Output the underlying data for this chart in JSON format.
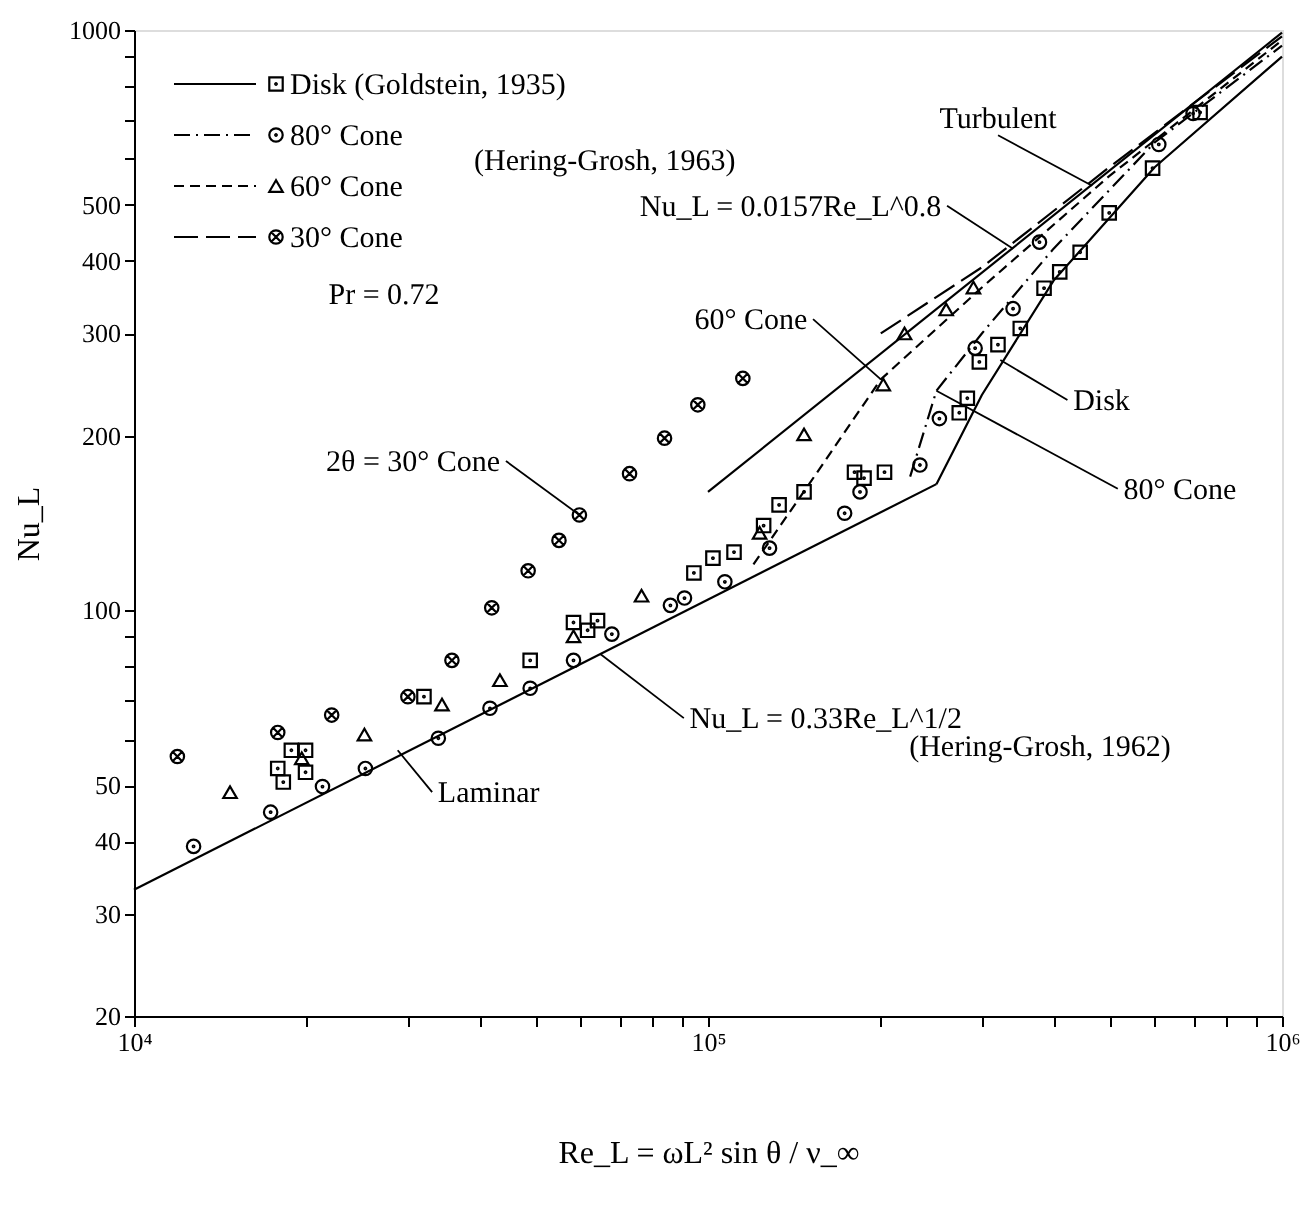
{
  "chart_data": {
    "type": "scatter",
    "xlabel": "Re_L = ωL² sin θ / ν_∞",
    "ylabel": "Nu_L",
    "log": "xy",
    "xlim": [
      10000,
      1000000
    ],
    "ylim": [
      20,
      1000
    ],
    "xticks": [
      {
        "value": 10000,
        "label": "10⁴"
      },
      {
        "value": 20000,
        "label": null
      },
      {
        "value": 30000,
        "label": null
      },
      {
        "value": 40000,
        "label": null
      },
      {
        "value": 50000,
        "label": null
      },
      {
        "value": 60000,
        "label": null
      },
      {
        "value": 70000,
        "label": null
      },
      {
        "value": 80000,
        "label": null
      },
      {
        "value": 90000,
        "label": null
      },
      {
        "value": 100000,
        "label": "10⁵"
      },
      {
        "value": 200000,
        "label": null
      },
      {
        "value": 300000,
        "label": null
      },
      {
        "value": 400000,
        "label": null
      },
      {
        "value": 500000,
        "label": null
      },
      {
        "value": 600000,
        "label": null
      },
      {
        "value": 700000,
        "label": null
      },
      {
        "value": 800000,
        "label": null
      },
      {
        "value": 900000,
        "label": null
      },
      {
        "value": 1000000,
        "label": "10⁶"
      }
    ],
    "yticks": [
      20,
      30,
      40,
      50,
      {
        "value": 60,
        "label": null
      },
      {
        "value": 70,
        "label": null
      },
      {
        "value": 80,
        "label": null
      },
      {
        "value": 90,
        "label": null
      },
      100,
      200,
      300,
      400,
      500,
      {
        "value": 600,
        "label": null
      },
      {
        "value": 700,
        "label": null
      },
      {
        "value": 800,
        "label": null
      },
      {
        "value": 900,
        "label": null
      },
      1000
    ],
    "grid": false,
    "legend": "top left",
    "series": [
      {
        "type": "line",
        "x": [
          10000,
          250000
        ],
        "values": [
          33,
          165
        ],
        "color": "#000000",
        "line_style": "solid"
      },
      {
        "type": "line",
        "x": [
          100000,
          1000000
        ],
        "values": [
          160,
          990
        ],
        "color": "#000000",
        "line_style": "solid"
      },
      {
        "type": "line",
        "x": [
          250000,
          300000,
          400000,
          600000,
          1000000
        ],
        "values": [
          165,
          235,
          370,
          580,
          900
        ],
        "color": "#000000",
        "line_style": "solid"
      },
      {
        "type": "line",
        "x": [
          225000,
          250000,
          300000,
          400000,
          600000,
          1000000
        ],
        "values": [
          170,
          239,
          300,
          420,
          640,
          940
        ],
        "color": "#000000",
        "line_style": "dashdot"
      },
      {
        "type": "line",
        "x": [
          120000,
          150000,
          200000,
          300000,
          500000,
          1000000
        ],
        "values": [
          120,
          165,
          250,
          360,
          560,
          960
        ],
        "color": "#000000",
        "line_style": "dashed"
      },
      {
        "type": "line",
        "x": [
          200000,
          300000,
          500000,
          1000000
        ],
        "values": [
          300,
          390,
          580,
          975
        ],
        "color": "#000000",
        "line_style": "longdashed"
      },
      {
        "name": "Disk (Goldstein, 1935)",
        "color": "#000000",
        "marker": "square",
        "line_style": "solid",
        "x": [
          17800,
          18200,
          18800,
          19900,
          19900,
          32000,
          49000,
          58300,
          61700,
          64200,
          94500,
          102000,
          111000,
          125000,
          133000,
          147000,
          180000,
          187000,
          203000,
          274000,
          283000,
          297000,
          320000,
          350000,
          385000,
          410000,
          445000,
          500000,
          595000,
          720000
        ],
        "values": [
          53.4,
          50.6,
          57.4,
          57.4,
          52.6,
          71,
          82,
          95.3,
          92.4,
          96,
          116,
          123,
          126,
          140,
          152,
          160,
          173,
          169,
          173,
          219,
          232,
          268,
          287,
          306,
          359,
          383,
          414,
          484,
          578,
          721
        ]
      },
      {
        "name": "80° Cone",
        "color": "#000000",
        "marker": "circle",
        "line_style": "dashdot",
        "x": [
          12700,
          17300,
          21300,
          25300,
          33900,
          41700,
          49000,
          58300,
          68000,
          86000,
          91000,
          107000,
          128000,
          173000,
          184000,
          234000,
          253000,
          292000,
          340000,
          378000,
          610000,
          700000
        ],
        "values": [
          39.2,
          44.9,
          49.7,
          53.4,
          60.2,
          67.8,
          73.4,
          82,
          91,
          102,
          105,
          112,
          128,
          147,
          160,
          178,
          214,
          283,
          331,
          431,
          635,
          718
        ]
      },
      {
        "name": "60° Cone",
        "color": "#000000",
        "marker": "triangle",
        "line_style": "dashed",
        "x": [
          14700,
          19600,
          25200,
          34400,
          43400,
          58300,
          76600,
          123000,
          147000,
          202000,
          220000,
          260000,
          290000
        ],
        "values": [
          48.6,
          55.6,
          61.1,
          68.8,
          75.8,
          90.2,
          106,
          136,
          201,
          245,
          300,
          330,
          360
        ]
      },
      {
        "name": "30° Cone",
        "color": "#000000",
        "marker": "cross",
        "line_style": "longdashed",
        "x": [
          11900,
          17800,
          22100,
          30000,
          35800,
          42000,
          48600,
          55000,
          59700,
          73000,
          84000,
          96000,
          115000
        ],
        "values": [
          56,
          61.6,
          66,
          71,
          82,
          101,
          117,
          132,
          146,
          172,
          198,
          226,
          251
        ]
      }
    ],
    "annotations": [
      {
        "text": "Turbulent",
        "x": 467000,
        "y": 539
      },
      {
        "text": "Nu_L = 0.0157Re_L^0.8",
        "x": 340000,
        "y": 420
      },
      {
        "text": "60° Cone",
        "x": 200000,
        "y": 250
      },
      {
        "text": "2θ = 30° Cone",
        "x": 59700,
        "y": 146
      },
      {
        "text": "Disk",
        "x": 323000,
        "y": 270
      },
      {
        "text": "80° Cone",
        "x": 250000,
        "y": 239
      },
      {
        "text": "Laminar",
        "x": 28800,
        "y": 57.4
      },
      {
        "text": "Nu_L = 0.33Re_L^1/2",
        "x": 65000,
        "y": 84
      },
      "(Hering-Grosh, 1962)",
      "(Hering-Grosh, 1963)",
      "Pr = 0.72"
    ]
  }
}
